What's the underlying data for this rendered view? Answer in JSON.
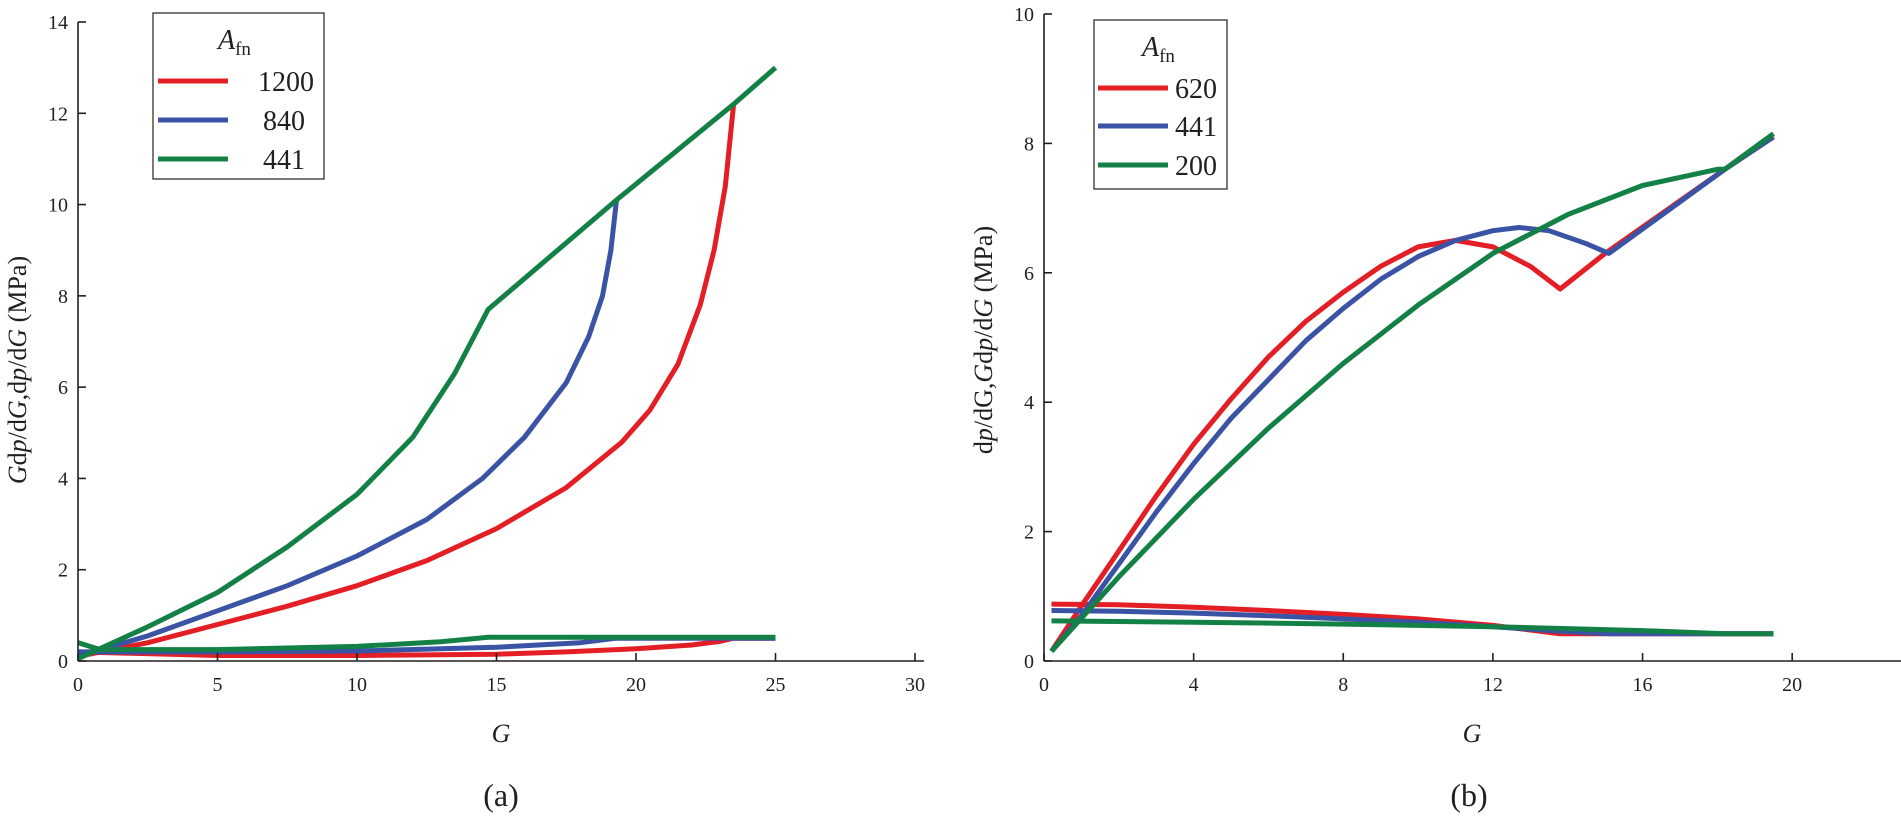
{
  "chart_data": [
    {
      "type": "line",
      "panel_label": "(a)",
      "xlabel": "G",
      "ylabel": "Gdp/dG,dp/dG (MPa)",
      "xlim": [
        0,
        30
      ],
      "ylim": [
        0,
        14
      ],
      "xticks": [
        0,
        5,
        10,
        15,
        20,
        25,
        30
      ],
      "yticks": [
        0,
        2,
        4,
        6,
        8,
        10,
        12,
        14
      ],
      "legend": {
        "title": "A",
        "title_sub": "fn",
        "placement": "top-left"
      },
      "series": [
        {
          "name": "1200",
          "color": "#e31e24",
          "upper": [
            [
              0,
              0.1
            ],
            [
              2.5,
              0.4
            ],
            [
              5,
              0.8
            ],
            [
              7.5,
              1.2
            ],
            [
              10,
              1.65
            ],
            [
              12.5,
              2.2
            ],
            [
              15,
              2.9
            ],
            [
              17.5,
              3.8
            ],
            [
              19.5,
              4.8
            ],
            [
              20.5,
              5.5
            ],
            [
              21.5,
              6.5
            ],
            [
              22.3,
              7.8
            ],
            [
              22.8,
              9
            ],
            [
              23.2,
              10.4
            ],
            [
              23.5,
              12.2
            ]
          ],
          "lower": [
            [
              0,
              0.2
            ],
            [
              5,
              0.12
            ],
            [
              10,
              0.12
            ],
            [
              15,
              0.15
            ],
            [
              17.5,
              0.2
            ],
            [
              20,
              0.27
            ],
            [
              22,
              0.35
            ],
            [
              23,
              0.43
            ],
            [
              23.5,
              0.5
            ],
            [
              25,
              0.5
            ]
          ]
        },
        {
          "name": "840",
          "color": "#3a53a4",
          "upper": [
            [
              0,
              0.1
            ],
            [
              2.5,
              0.55
            ],
            [
              5,
              1.1
            ],
            [
              7.5,
              1.65
            ],
            [
              10,
              2.3
            ],
            [
              12.5,
              3.1
            ],
            [
              14.5,
              4
            ],
            [
              16,
              4.9
            ],
            [
              17.5,
              6.1
            ],
            [
              18.3,
              7.1
            ],
            [
              18.8,
              8
            ],
            [
              19.1,
              9
            ],
            [
              19.3,
              10.1
            ]
          ],
          "lower": [
            [
              0,
              0.2
            ],
            [
              5,
              0.2
            ],
            [
              10,
              0.22
            ],
            [
              15,
              0.3
            ],
            [
              18,
              0.4
            ],
            [
              19.3,
              0.5
            ],
            [
              25,
              0.5
            ]
          ]
        },
        {
          "name": "441",
          "color": "#138046",
          "upper": [
            [
              0,
              0.05
            ],
            [
              2.5,
              0.75
            ],
            [
              5,
              1.5
            ],
            [
              7.5,
              2.5
            ],
            [
              10,
              3.65
            ],
            [
              12,
              4.9
            ],
            [
              13.5,
              6.3
            ],
            [
              14.7,
              7.7
            ],
            [
              19.3,
              10.1
            ],
            [
              23.5,
              12.2
            ],
            [
              25,
              13
            ]
          ],
          "lower": [
            [
              0,
              0.4
            ],
            [
              0.8,
              0.25
            ],
            [
              5,
              0.25
            ],
            [
              10,
              0.32
            ],
            [
              13,
              0.42
            ],
            [
              14.7,
              0.52
            ],
            [
              25,
              0.52
            ]
          ]
        }
      ]
    },
    {
      "type": "line",
      "panel_label": "(b)",
      "xlabel": "G",
      "ylabel": "dp/dG,Gdp/dG (MPa)",
      "xlim": [
        0,
        22
      ],
      "ylim": [
        0,
        10
      ],
      "xticks": [
        0,
        4,
        8,
        12,
        16,
        20
      ],
      "yticks": [
        0,
        2,
        4,
        6,
        8,
        10
      ],
      "legend": {
        "title": "A",
        "title_sub": "fn",
        "placement": "top-left"
      },
      "series": [
        {
          "name": "620",
          "color": "#e31e24",
          "upper": [
            [
              0.2,
              0.15
            ],
            [
              1,
              0.85
            ],
            [
              2,
              1.7
            ],
            [
              3,
              2.55
            ],
            [
              4,
              3.35
            ],
            [
              5,
              4.05
            ],
            [
              6,
              4.7
            ],
            [
              7,
              5.25
            ],
            [
              8,
              5.7
            ],
            [
              9,
              6.1
            ],
            [
              10,
              6.4
            ],
            [
              11,
              6.5
            ],
            [
              12,
              6.4
            ],
            [
              13,
              6.1
            ],
            [
              13.8,
              5.75
            ],
            [
              15,
              6.3
            ],
            [
              18.2,
              7.6
            ],
            [
              19.5,
              8.1
            ]
          ],
          "lower": [
            [
              0.2,
              0.88
            ],
            [
              2,
              0.87
            ],
            [
              4,
              0.83
            ],
            [
              6,
              0.78
            ],
            [
              8,
              0.72
            ],
            [
              10,
              0.65
            ],
            [
              12,
              0.55
            ],
            [
              13.8,
              0.42
            ],
            [
              15,
              0.42
            ],
            [
              19.5,
              0.42
            ]
          ]
        },
        {
          "name": "441",
          "color": "#3a53a4",
          "upper": [
            [
              0.2,
              0.15
            ],
            [
              1,
              0.7
            ],
            [
              2,
              1.5
            ],
            [
              3,
              2.3
            ],
            [
              4,
              3.05
            ],
            [
              5,
              3.75
            ],
            [
              6,
              4.35
            ],
            [
              7,
              4.95
            ],
            [
              8,
              5.45
            ],
            [
              9,
              5.9
            ],
            [
              10,
              6.25
            ],
            [
              11,
              6.5
            ],
            [
              12,
              6.65
            ],
            [
              12.7,
              6.7
            ],
            [
              13.5,
              6.65
            ],
            [
              14.5,
              6.45
            ],
            [
              15.1,
              6.3
            ],
            [
              18.2,
              7.6
            ],
            [
              19.5,
              8.1
            ]
          ],
          "lower": [
            [
              0.2,
              0.78
            ],
            [
              2,
              0.77
            ],
            [
              4,
              0.74
            ],
            [
              6,
              0.7
            ],
            [
              8,
              0.65
            ],
            [
              10,
              0.6
            ],
            [
              12,
              0.53
            ],
            [
              13.8,
              0.46
            ],
            [
              15.1,
              0.42
            ],
            [
              19.5,
              0.42
            ]
          ]
        },
        {
          "name": "200",
          "color": "#138046",
          "upper": [
            [
              0.2,
              0.15
            ],
            [
              2,
              1.3
            ],
            [
              4,
              2.5
            ],
            [
              6,
              3.6
            ],
            [
              8,
              4.6
            ],
            [
              10,
              5.5
            ],
            [
              12,
              6.3
            ],
            [
              14,
              6.9
            ],
            [
              16,
              7.35
            ],
            [
              18,
              7.6
            ],
            [
              18.2,
              7.6
            ],
            [
              19.5,
              8.15
            ]
          ],
          "lower": [
            [
              0.2,
              0.62
            ],
            [
              4,
              0.6
            ],
            [
              8,
              0.57
            ],
            [
              12,
              0.53
            ],
            [
              16,
              0.47
            ],
            [
              18.2,
              0.42
            ],
            [
              19.5,
              0.42
            ]
          ]
        }
      ]
    }
  ]
}
